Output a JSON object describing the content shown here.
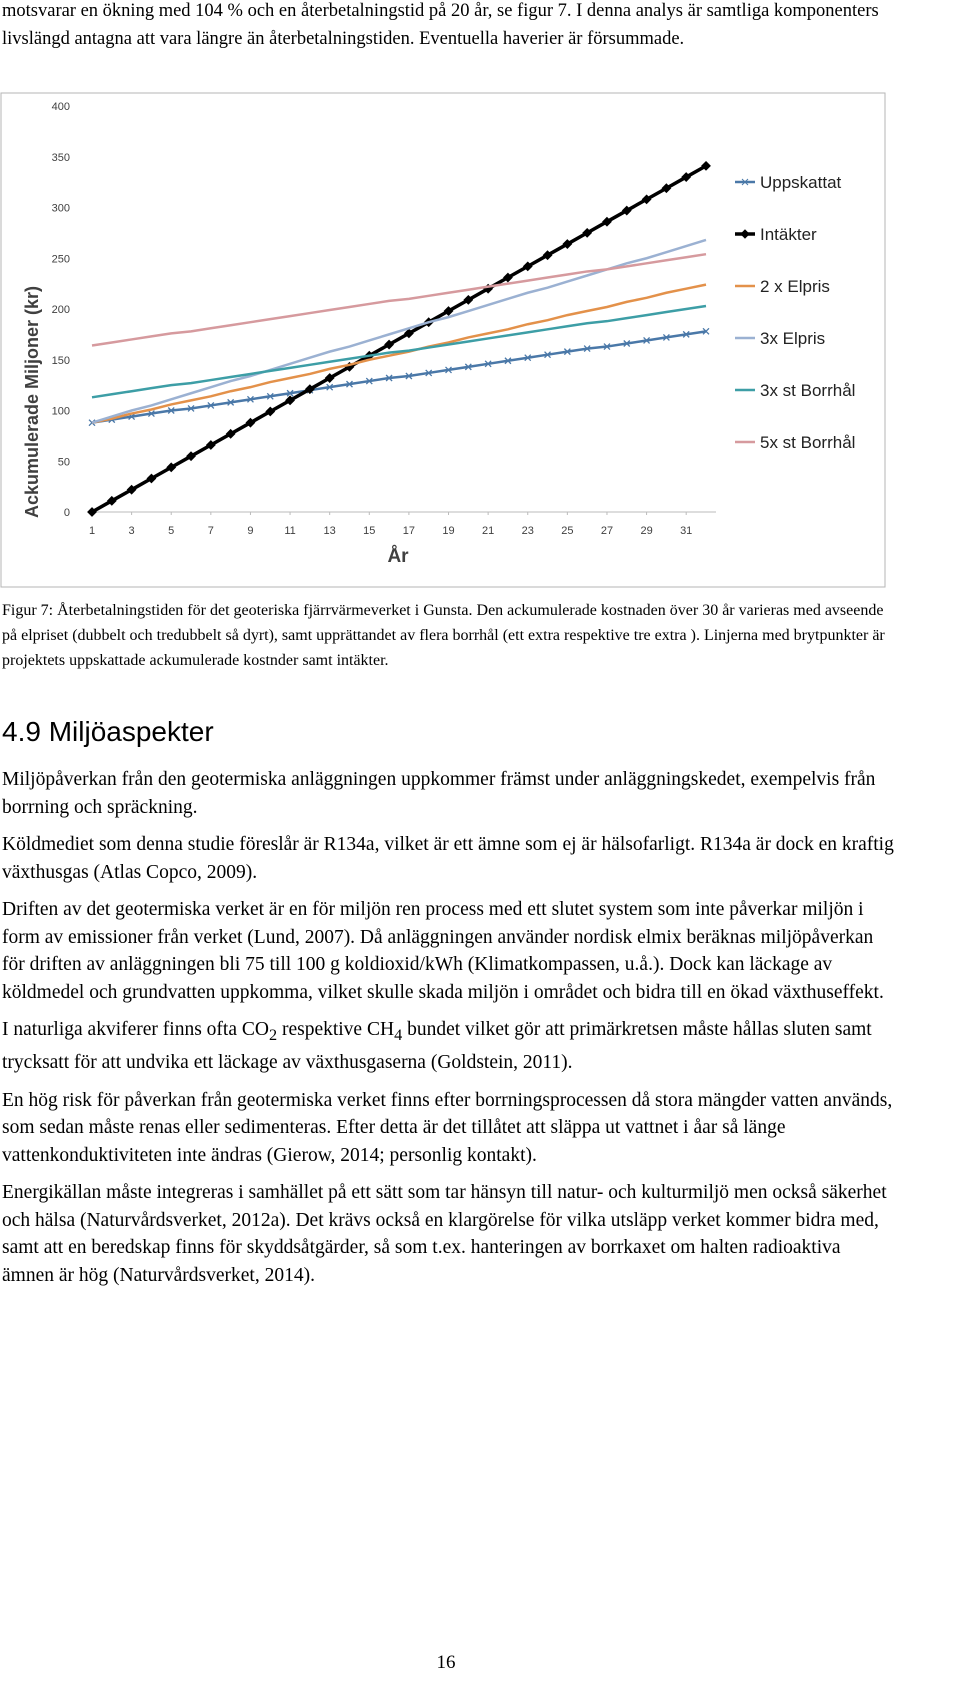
{
  "intro": "motsvarar en ökning med 104 % och en återbetalningstid på 20 år, se figur 7. I denna analys är samtliga komponenters livslängd antagna att vara längre än återbetalningstiden. Eventuella haverier är försummade.",
  "chart_data": {
    "type": "line",
    "xlabel": "År",
    "ylabel": "Ackumulerade Miljoner (kr)",
    "x": [
      1,
      2,
      3,
      4,
      5,
      6,
      7,
      8,
      9,
      10,
      11,
      12,
      13,
      14,
      15,
      16,
      17,
      18,
      19,
      20,
      21,
      22,
      23,
      24,
      25,
      26,
      27,
      28,
      29,
      30,
      31,
      32
    ],
    "xlim": [
      1,
      32
    ],
    "xticks": [
      1,
      3,
      5,
      7,
      9,
      11,
      13,
      15,
      17,
      19,
      21,
      23,
      25,
      27,
      29,
      31
    ],
    "ylim": [
      0,
      400
    ],
    "yticks": [
      0,
      50,
      100,
      150,
      200,
      250,
      300,
      350,
      400
    ],
    "legend": "right",
    "series": [
      {
        "name": "Uppskattat",
        "color": "#4a78a8",
        "marker": "x",
        "values": [
          88,
          91,
          94,
          97,
          100,
          102,
          105,
          108,
          111,
          114,
          117,
          120,
          123,
          126,
          129,
          132,
          134,
          137,
          140,
          143,
          146,
          149,
          152,
          155,
          158,
          161,
          163,
          166,
          169,
          172,
          175,
          178
        ]
      },
      {
        "name": "Intäkter",
        "color": "#000000",
        "marker": "diamond",
        "values": [
          0,
          11,
          22,
          33,
          44,
          55,
          66,
          77,
          88,
          99,
          110,
          121,
          132,
          143,
          154,
          165,
          176,
          187,
          198,
          209,
          220,
          231,
          242,
          253,
          264,
          275,
          286,
          297,
          308,
          319,
          330,
          341
        ]
      },
      {
        "name": "2 x Elpris",
        "color": "#e3914a",
        "values": [
          88,
          92,
          97,
          101,
          106,
          110,
          114,
          119,
          123,
          128,
          132,
          136,
          141,
          145,
          150,
          154,
          158,
          163,
          167,
          172,
          176,
          180,
          185,
          189,
          194,
          198,
          202,
          207,
          211,
          216,
          220,
          224
        ]
      },
      {
        "name": "3x Elpris",
        "color": "#9bb1d2",
        "values": [
          88,
          94,
          100,
          105,
          111,
          117,
          123,
          129,
          134,
          140,
          146,
          152,
          158,
          163,
          169,
          175,
          181,
          187,
          192,
          198,
          204,
          210,
          216,
          221,
          227,
          233,
          239,
          245,
          250,
          256,
          262,
          268
        ]
      },
      {
        "name": "3x st Borrhål",
        "color": "#3d9ea6",
        "values": [
          113,
          116,
          119,
          122,
          125,
          127,
          130,
          133,
          136,
          139,
          142,
          145,
          148,
          151,
          154,
          157,
          159,
          162,
          165,
          168,
          171,
          174,
          177,
          180,
          183,
          186,
          188,
          191,
          194,
          197,
          200,
          203
        ]
      },
      {
        "name": "5x st Borrhål",
        "color": "#d69a9e",
        "values": [
          164,
          167,
          170,
          173,
          176,
          178,
          181,
          184,
          187,
          190,
          193,
          196,
          199,
          202,
          205,
          208,
          210,
          213,
          216,
          219,
          222,
          225,
          228,
          231,
          234,
          237,
          239,
          242,
          245,
          248,
          251,
          254
        ]
      }
    ]
  },
  "caption": "Figur 7: Återbetalningstiden för det geoteriska fjärrvärmeverket i Gunsta. Den ackumulerade kostnaden över 30 år varieras med avseende på elpriset (dubbelt och tredubbelt så dyrt), samt upprättandet av flera borrhål (ett extra respektive tre extra ). Linjerna med brytpunkter är projektets uppskattade ackumulerade kostnder samt intäkter.",
  "section": {
    "number": "4.9",
    "title": "Miljöaspekter"
  },
  "paragraphs": [
    "Miljöpåverkan från den geotermiska anläggningen uppkommer främst under anläggningskedet, exempelvis från borrning och spräckning.",
    "Köldmediet som denna studie föreslår är R134a, vilket är ett ämne som ej är hälsofarligt. R134a är dock en kraftig växthusgas (Atlas Copco, 2009).",
    "Driften av det geotermiska verket är en för miljön ren process med ett slutet system som inte påverkar miljön i form av emissioner från verket (Lund, 2007). Då anläggningen använder nordisk elmix beräknas miljöpåverkan för driften av anläggningen bli 75 till 100 g koldioxid/kWh (Klimatkompassen, u.å.). Dock kan läckage av köldmedel och grundvatten uppkomma, vilket skulle skada miljön i området och bidra till en ökad växthuseffekt.",
    [
      "I naturliga akviferer finns ofta CO",
      "2",
      " respektive CH",
      "4",
      " bundet vilket gör att primärkretsen måste hållas sluten samt trycksatt för att undvika ett läckage av växthusgaserna (Goldstein, 2011)."
    ],
    "En hög risk för påverkan från geotermiska verket finns efter borrningsprocessen då stora mängder vatten används, som sedan måste renas eller sedimenteras. Efter detta är det tillåtet att släppa ut vattnet i åar så länge vattenkonduktiviteten inte ändras (Gierow, 2014; personlig kontakt).",
    "Energikällan måste integreras i samhället på ett sätt som tar hänsyn till natur- och kulturmiljö men också säkerhet och hälsa (Naturvårdsverket, 2012a). Det krävs också en klargörelse för vilka utsläpp verket kommer bidra med, samt att en beredskap finns för skyddsåtgärder, så som t.ex. hanteringen av borrkaxet om halten radioaktiva ämnen är hög (Naturvårdsverket, 2014)."
  ],
  "page_number": "16"
}
